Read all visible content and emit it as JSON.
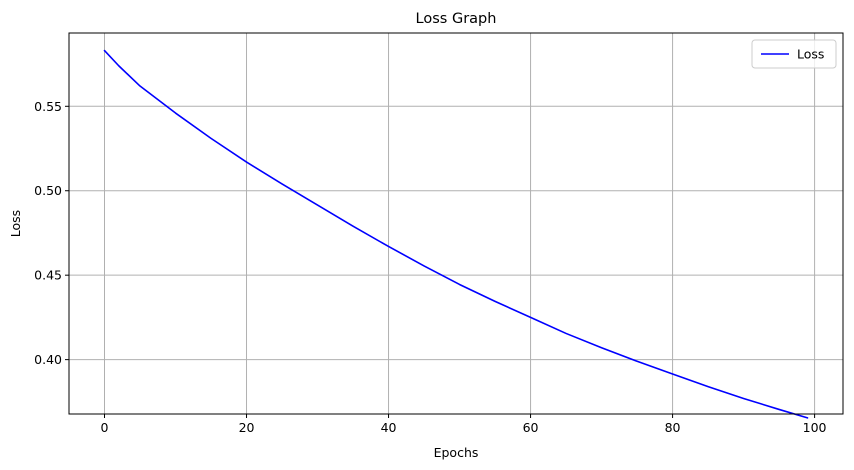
{
  "chart_data": {
    "type": "line",
    "title": "Loss Graph",
    "xlabel": "Epochs",
    "ylabel": "Loss",
    "xlim": [
      -5,
      104
    ],
    "ylim": [
      0.3678,
      0.5934
    ],
    "xticks": [
      0,
      20,
      40,
      60,
      80,
      100
    ],
    "yticks": [
      0.4,
      0.45,
      0.5,
      0.55
    ],
    "grid": true,
    "legend_position": "top-right",
    "series": [
      {
        "name": "Loss",
        "color": "#0000ff",
        "x": [
          0,
          2,
          5,
          10,
          15,
          20,
          25,
          30,
          35,
          40,
          45,
          50,
          55,
          60,
          65,
          70,
          75,
          80,
          85,
          90,
          95,
          99
        ],
        "y": [
          0.583,
          0.574,
          0.562,
          0.546,
          0.531,
          0.517,
          0.504,
          0.4915,
          0.479,
          0.467,
          0.4555,
          0.4445,
          0.4345,
          0.425,
          0.4155,
          0.407,
          0.399,
          0.3915,
          0.384,
          0.377,
          0.3705,
          0.3655
        ]
      }
    ]
  }
}
